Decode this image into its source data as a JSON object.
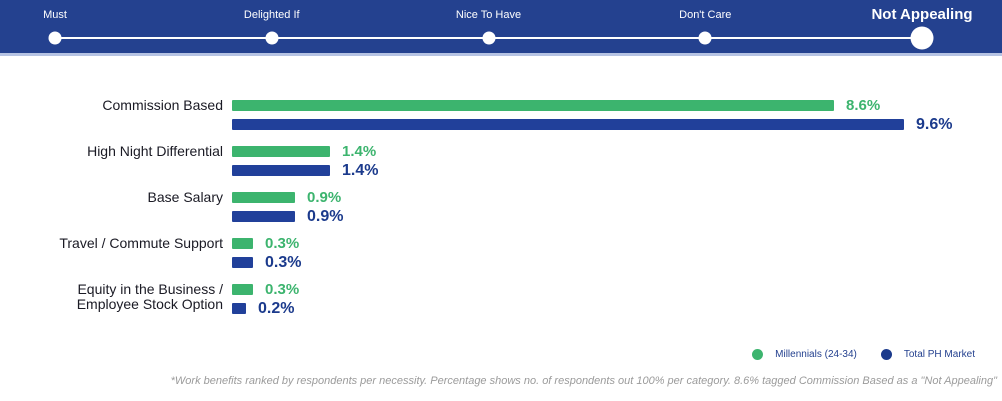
{
  "slider": {
    "items": [
      {
        "label": "Must",
        "active": false
      },
      {
        "label": "Delighted If",
        "active": false
      },
      {
        "label": "Nice To Have",
        "active": false
      },
      {
        "label": "Don't Care",
        "active": false
      },
      {
        "label": "Not Appealing",
        "active": true
      }
    ]
  },
  "chart_data": {
    "type": "bar",
    "orientation": "horizontal",
    "categories": [
      "Commission Based",
      "High Night Differential",
      "Base Salary",
      "Travel / Commute Support",
      "Equity in the Business /\nEmployee Stock Option"
    ],
    "series": [
      {
        "name": "Millennials (24-34)",
        "color": "#3cb46e",
        "values": [
          8.6,
          1.4,
          0.9,
          0.3,
          0.3
        ]
      },
      {
        "name": "Total PH Market",
        "color": "#21409a",
        "values": [
          9.6,
          1.4,
          0.9,
          0.3,
          0.2
        ]
      }
    ],
    "value_suffix": "%",
    "xlim": [
      0,
      10
    ],
    "grid": false,
    "legend_position": "bottom-right",
    "selected_filter": "Not Appealing"
  },
  "legend": {
    "items": [
      {
        "label": "Millennials (24-34)",
        "color": "#3cb46e"
      },
      {
        "label": "Total PH Market",
        "color": "#1b3a8c"
      }
    ]
  },
  "footnote": "*Work benefits ranked by respondents per necessity. Percentage shows no. of respondents out 100% per category. 8.6% tagged Commission Based as a \"Not Appealing\"",
  "colors": {
    "nav_background": "#24418f",
    "nav_strip": "#b6c3e3",
    "green": "#3cb46e",
    "blue_bar": "#21409a",
    "blue_text": "#1b3a8c"
  }
}
